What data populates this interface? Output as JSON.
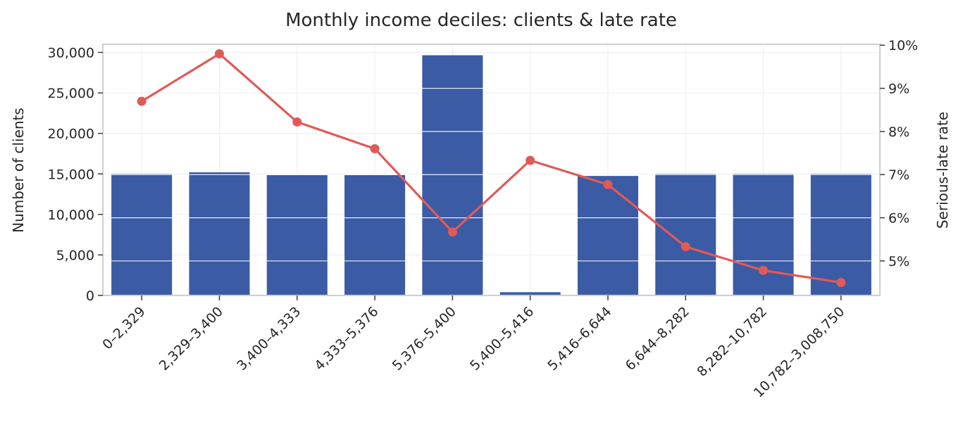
{
  "chart_data": {
    "type": "bar",
    "title": "Monthly income deciles: clients & late rate",
    "categories": [
      "0–2,329",
      "2,329–3,400",
      "3,400–4,333",
      "4,333–5,376",
      "5,376–5,400",
      "5,400–5,416",
      "5,416–6,644",
      "6,644–8,282",
      "8,282–10,782",
      "10,782–3,008,750"
    ],
    "series": [
      {
        "type": "bar",
        "axis": "left",
        "values": [
          15000,
          15200,
          14850,
          14850,
          29650,
          400,
          14750,
          15000,
          15000,
          15000
        ],
        "color": "#3b5ba5"
      },
      {
        "type": "line",
        "axis": "right",
        "values": [
          0.087,
          0.098,
          0.0822,
          0.076,
          0.0567,
          0.0733,
          0.0677,
          0.0533,
          0.0478,
          0.045
        ],
        "color": "#e05a57"
      }
    ],
    "ylabel": "Number of clients",
    "ylim": [
      0,
      31000
    ],
    "yticks": [
      0,
      5000,
      10000,
      15000,
      20000,
      25000,
      30000
    ],
    "ytick_labels": [
      "0",
      "5,000",
      "10,000",
      "15,000",
      "20,000",
      "25,000",
      "30,000"
    ],
    "y2label": "Serious-late rate",
    "y2lim": [
      0.042,
      0.1002
    ],
    "y2ticks": [
      0.05,
      0.06,
      0.07,
      0.08,
      0.09,
      0.1
    ],
    "y2tick_labels": [
      "5%",
      "6%",
      "7%",
      "8%",
      "9%",
      "10%"
    ],
    "grid": true,
    "legend": "none"
  }
}
